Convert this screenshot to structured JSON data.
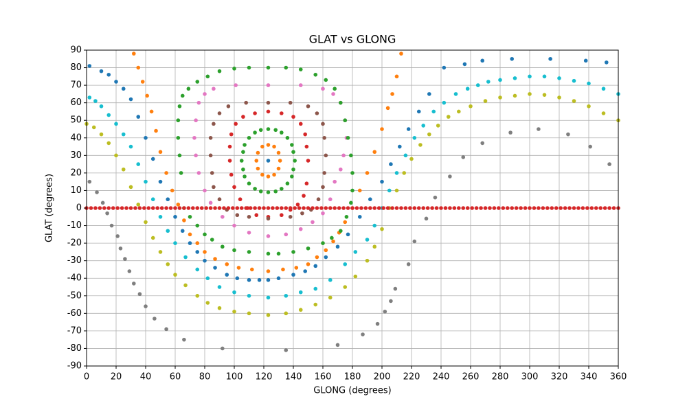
{
  "chart_data": {
    "type": "scatter",
    "title": "GLAT vs GLONG",
    "x_label": "GLONG (degrees)",
    "y_label": "GLAT (degrees)",
    "xlim": [
      0,
      360
    ],
    "ylim": [
      -90,
      90
    ],
    "xticks": [
      0,
      20,
      40,
      60,
      80,
      100,
      120,
      140,
      160,
      180,
      200,
      220,
      240,
      260,
      280,
      300,
      320,
      340,
      360
    ],
    "yticks": [
      -90,
      -80,
      -70,
      -60,
      -50,
      -40,
      -30,
      -20,
      -10,
      0,
      10,
      20,
      30,
      40,
      50,
      60,
      70,
      80,
      90
    ],
    "grid": true,
    "series": [
      {
        "color": "#1f77b4",
        "x": [
          123
        ],
        "values": [
          27
        ]
      },
      {
        "color": "#ff7f0e",
        "x": [
          131,
          130,
          127,
          123,
          119,
          116,
          115,
          116,
          119,
          123,
          127,
          130
        ],
        "values": [
          27,
          31.5,
          35,
          36,
          35,
          31.5,
          27,
          22.5,
          19,
          18,
          19,
          22.5
        ]
      },
      {
        "color": "#2ca02c",
        "x": [
          141,
          140,
          139,
          136,
          132,
          128,
          123,
          118,
          114,
          110,
          107,
          106,
          105,
          106,
          107,
          110,
          114,
          118,
          123,
          128,
          132,
          136,
          139,
          140
        ],
        "values": [
          27,
          32,
          36,
          40,
          43,
          44.5,
          45,
          44.5,
          43,
          40,
          36,
          32,
          27,
          22,
          18,
          14,
          11,
          9.5,
          9,
          9.5,
          11,
          14,
          18,
          22
        ]
      },
      {
        "color": "#d62728",
        "x": [
          150,
          149,
          148,
          145,
          140,
          132,
          123,
          114,
          106,
          101,
          98,
          97,
          97,
          98,
          100,
          104,
          109,
          115,
          123,
          132,
          138,
          143,
          147,
          149
        ],
        "values": [
          27,
          35,
          42,
          48,
          52,
          54,
          55,
          54,
          52,
          48,
          42,
          35,
          27,
          19,
          12,
          5,
          0,
          -4,
          -5,
          -4,
          -1,
          2,
          7,
          14
        ]
      },
      {
        "color": "#8c564b",
        "x": [
          162,
          161,
          160,
          156,
          150,
          138,
          123,
          108,
          96,
          90,
          86,
          84,
          84,
          85,
          86,
          90,
          95,
          102,
          110,
          123,
          138,
          146,
          152,
          157,
          160,
          161
        ],
        "values": [
          30,
          40,
          48,
          54,
          58,
          60,
          60,
          60,
          58,
          54,
          48,
          40,
          30,
          20,
          12,
          5,
          -1,
          -4,
          -5,
          -6,
          -5,
          -3,
          -1,
          5,
          12,
          20
        ]
      },
      {
        "color": "#e377c2",
        "x": [
          176,
          175,
          172,
          167,
          160,
          145,
          123,
          101,
          86,
          80,
          76,
          74,
          73,
          74,
          76,
          80,
          84,
          92,
          100,
          110,
          123,
          135,
          145,
          153,
          160,
          165,
          168,
          172,
          174
        ],
        "values": [
          40,
          50,
          60,
          65,
          68,
          70,
          70,
          70,
          68,
          65,
          60,
          50,
          40,
          30,
          20,
          10,
          3,
          -5,
          -10,
          -14,
          -16,
          -15,
          -12,
          -8,
          -3,
          5,
          15,
          22,
          30
        ]
      },
      {
        "color": "#7f7f7f",
        "x": [
          2,
          7,
          11,
          14,
          17,
          21,
          23,
          26,
          29,
          32,
          36,
          40,
          46,
          54,
          66,
          92,
          135,
          170,
          187,
          197,
          202,
          206,
          209,
          218,
          222,
          230,
          236,
          246,
          255,
          268,
          287,
          306,
          326,
          341,
          354
        ],
        "values": [
          15,
          9,
          3,
          -3,
          -10,
          -16,
          -23,
          -29,
          -36,
          -43,
          -49,
          -56,
          -63,
          -69,
          -75,
          -80,
          -81,
          -78,
          -72,
          -66,
          -59,
          -53,
          -46,
          -32,
          -19,
          -6,
          6,
          18,
          29,
          37,
          43,
          45,
          42,
          35,
          25
        ]
      },
      {
        "color": "#bcbd22",
        "x": [
          0,
          5,
          10,
          15,
          20,
          25,
          30,
          35,
          40,
          45,
          50,
          55,
          60,
          67,
          75,
          82,
          90,
          100,
          110,
          123,
          135,
          145,
          155,
          165,
          175,
          182,
          190,
          195,
          200,
          205,
          210,
          215,
          220,
          226,
          232,
          238,
          245,
          252,
          260,
          270,
          280,
          290,
          300,
          310,
          320,
          330,
          340,
          350,
          360
        ],
        "values": [
          48,
          46,
          42,
          37,
          30,
          22,
          12,
          2,
          -8,
          -17,
          -25,
          -32,
          -38,
          -44,
          -50,
          -54,
          -57,
          -59,
          -60,
          -61,
          -60,
          -58,
          -55,
          -51,
          -45,
          -39,
          -30,
          -22,
          -12,
          0,
          10,
          20,
          28,
          36,
          42,
          47,
          52,
          55,
          58,
          61,
          63,
          64,
          65,
          64.5,
          63,
          61,
          58,
          54,
          50
        ]
      },
      {
        "color": "#17becf",
        "x": [
          2,
          6,
          10,
          15,
          20,
          25,
          30,
          35,
          40,
          45,
          50,
          55,
          60,
          67,
          75,
          82,
          90,
          100,
          110,
          123,
          135,
          145,
          155,
          165,
          175,
          182,
          190,
          195,
          200,
          205,
          210,
          216,
          222,
          228,
          235,
          242,
          250,
          258,
          265,
          272,
          280,
          290,
          300,
          310,
          320,
          330,
          340,
          350,
          360
        ],
        "values": [
          63,
          61,
          58,
          53,
          48,
          42,
          35,
          25,
          15,
          5,
          -5,
          -13,
          -20,
          -28,
          -35,
          -40,
          -45,
          -48,
          -50,
          -51,
          -50,
          -48,
          -46,
          -41,
          -32,
          -25,
          -18,
          -10,
          0,
          10,
          20,
          30,
          40,
          47,
          55,
          60,
          65,
          68,
          70,
          72,
          73,
          74,
          75,
          75,
          74,
          72.5,
          71,
          68,
          65
        ]
      },
      {
        "color": "#1f77b4",
        "x": [
          2,
          10,
          15,
          20,
          25,
          30,
          35,
          40,
          45,
          50,
          55,
          60,
          65,
          70,
          75,
          80,
          87,
          95,
          102,
          110,
          117,
          123,
          130,
          140,
          148,
          155,
          162,
          170,
          177,
          185,
          192,
          200,
          206,
          212,
          218,
          225,
          232,
          242,
          256,
          268,
          288,
          314,
          338,
          352
        ],
        "values": [
          81,
          78,
          76,
          72,
          68,
          62,
          52,
          40,
          28,
          15,
          5,
          -5,
          -13,
          -20,
          -25,
          -30,
          -34,
          -38,
          -40,
          -41,
          -41,
          -41,
          -40,
          -38,
          -36,
          -33,
          -28,
          -22,
          -15,
          -5,
          5,
          15,
          25,
          35,
          45,
          55,
          65,
          80,
          82,
          84,
          85,
          85,
          84,
          83
        ]
      },
      {
        "color": "#ff7f0e",
        "x": [
          32,
          35,
          38,
          41,
          44,
          47,
          50,
          54,
          58,
          62,
          66,
          70,
          75,
          80,
          87,
          95,
          103,
          112,
          123,
          133,
          142,
          150,
          156,
          162,
          167,
          171,
          175,
          180,
          185,
          190,
          195,
          200,
          204,
          207,
          210,
          213
        ],
        "values": [
          88,
          80,
          72,
          64,
          55,
          44,
          32,
          20,
          10,
          2,
          -7,
          -15,
          -20,
          -25,
          -29,
          -32,
          -34,
          -35,
          -36,
          -35,
          -34,
          -32,
          -28,
          -24,
          -19,
          -14,
          -8,
          0,
          10,
          20,
          32,
          45,
          57,
          65,
          75,
          88
        ]
      },
      {
        "color": "#2ca02c",
        "x": [
          64,
          63,
          62,
          62,
          63,
          65,
          69,
          75,
          82,
          90,
          100,
          110,
          123,
          135,
          145,
          155,
          162,
          168,
          172,
          175,
          177,
          179,
          180,
          180,
          179,
          176,
          172,
          166,
          160,
          150,
          140,
          130,
          123,
          110,
          100,
          92,
          85,
          80,
          75,
          70,
          66
        ],
        "values": [
          20,
          30,
          40,
          50,
          58,
          64,
          68,
          72,
          75,
          78,
          79.5,
          80,
          80,
          80,
          79,
          76,
          73,
          68,
          60,
          50,
          40,
          30,
          20,
          10,
          3,
          -5,
          -13,
          -17,
          -20,
          -23,
          -25,
          -26,
          -26,
          -25,
          -24,
          -22,
          -18,
          -15,
          -10,
          -5,
          0
        ]
      },
      {
        "color": "#d62728",
        "x": [
          0,
          3,
          6,
          9,
          12,
          15,
          18,
          21,
          24,
          27,
          30,
          33,
          36,
          39,
          42,
          45,
          48,
          51,
          54,
          57,
          60,
          63,
          66,
          69,
          72,
          75,
          78,
          81,
          84,
          87,
          90,
          93,
          96,
          99,
          102,
          105,
          108,
          111,
          114,
          117,
          120,
          123,
          126,
          129,
          132,
          135,
          138,
          141,
          144,
          147,
          150,
          153,
          156,
          159,
          162,
          165,
          168,
          171,
          174,
          177,
          180,
          183,
          186,
          189,
          192,
          195,
          198,
          201,
          204,
          207,
          210,
          213,
          216,
          219,
          222,
          225,
          228,
          231,
          234,
          237,
          240,
          243,
          246,
          249,
          252,
          255,
          258,
          261,
          264,
          267,
          270,
          273,
          276,
          279,
          282,
          285,
          288,
          291,
          294,
          297,
          300,
          303,
          306,
          309,
          312,
          315,
          318,
          321,
          324,
          327,
          330,
          333,
          336,
          339,
          342,
          345,
          348,
          351,
          354,
          357,
          360
        ],
        "values": [
          0,
          0,
          0,
          0,
          0,
          0,
          0,
          0,
          0,
          0,
          0,
          0,
          0,
          0,
          0,
          0,
          0,
          0,
          0,
          0,
          0,
          0,
          0,
          0,
          0,
          0,
          0,
          0,
          0,
          0,
          0,
          0,
          0,
          0,
          0,
          0,
          0,
          0,
          0,
          0,
          0,
          0,
          0,
          0,
          0,
          0,
          0,
          0,
          0,
          0,
          0,
          0,
          0,
          0,
          0,
          0,
          0,
          0,
          0,
          0,
          0,
          0,
          0,
          0,
          0,
          0,
          0,
          0,
          0,
          0,
          0,
          0,
          0,
          0,
          0,
          0,
          0,
          0,
          0,
          0,
          0,
          0,
          0,
          0,
          0,
          0,
          0,
          0,
          0,
          0,
          0,
          0,
          0,
          0,
          0,
          0,
          0,
          0,
          0,
          0,
          0,
          0,
          0,
          0,
          0,
          0,
          0,
          0,
          0,
          0,
          0,
          0,
          0,
          0,
          0,
          0,
          0,
          0,
          0,
          0,
          0
        ]
      }
    ]
  }
}
